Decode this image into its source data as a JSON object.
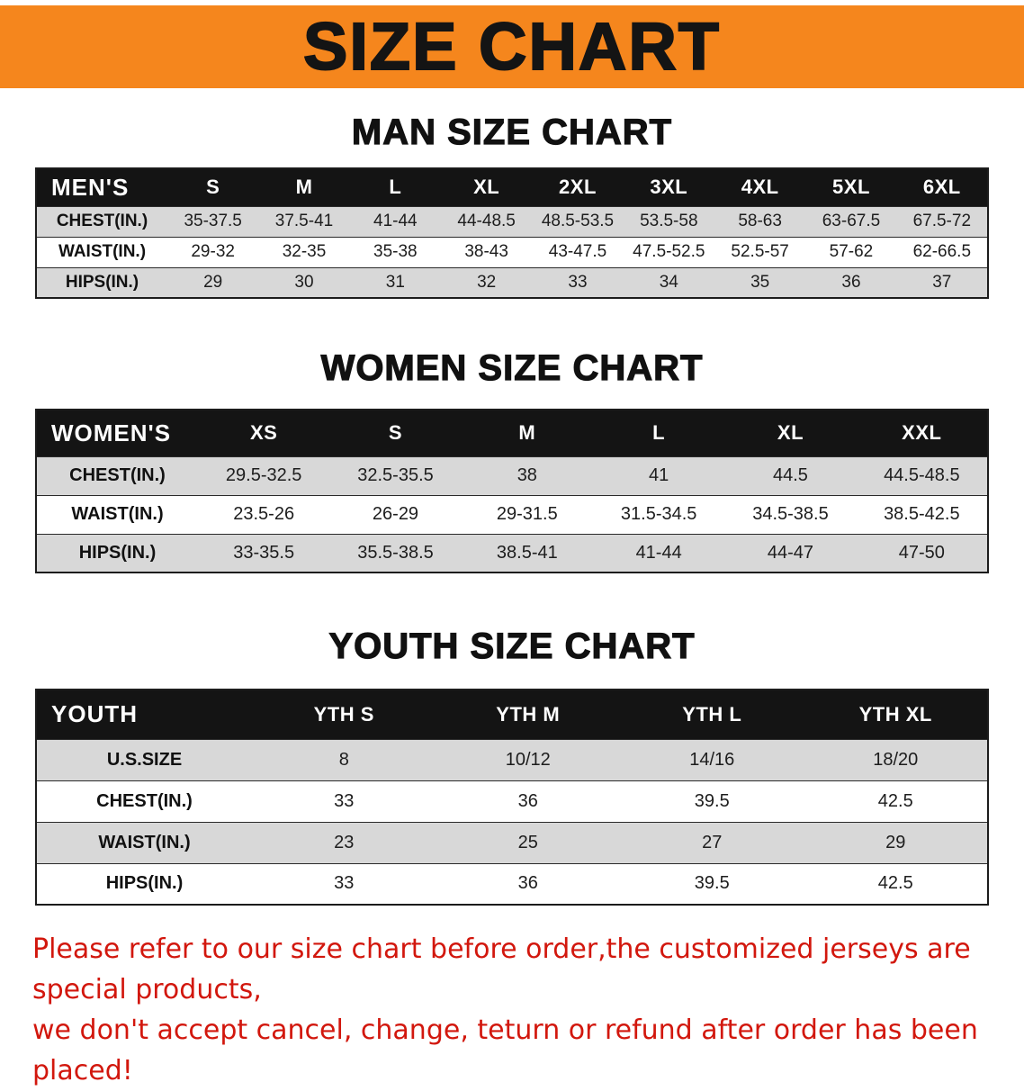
{
  "banner": {
    "title": "SIZE CHART"
  },
  "sections": [
    {
      "heading": "MAN SIZE CHART",
      "table": {
        "header": [
          "MEN'S",
          "S",
          "M",
          "L",
          "XL",
          "2XL",
          "3XL",
          "4XL",
          "5XL",
          "6XL"
        ],
        "rows": [
          [
            "CHEST(IN.)",
            "35-37.5",
            "37.5-41",
            "41-44",
            "44-48.5",
            "48.5-53.5",
            "53.5-58",
            "58-63",
            "63-67.5",
            "67.5-72"
          ],
          [
            "WAIST(IN.)",
            "29-32",
            "32-35",
            "35-38",
            "38-43",
            "43-47.5",
            "47.5-52.5",
            "52.5-57",
            "57-62",
            "62-66.5"
          ],
          [
            "HIPS(IN.)",
            "29",
            "30",
            "31",
            "32",
            "33",
            "34",
            "35",
            "36",
            "37"
          ]
        ]
      }
    },
    {
      "heading": "WOMEN SIZE CHART",
      "table": {
        "header": [
          "WOMEN'S",
          "XS",
          "S",
          "M",
          "L",
          "XL",
          "XXL"
        ],
        "rows": [
          [
            "CHEST(IN.)",
            "29.5-32.5",
            "32.5-35.5",
            "38",
            "41",
            "44.5",
            "44.5-48.5"
          ],
          [
            "WAIST(IN.)",
            "23.5-26",
            "26-29",
            "29-31.5",
            "31.5-34.5",
            "34.5-38.5",
            "38.5-42.5"
          ],
          [
            "HIPS(IN.)",
            "33-35.5",
            "35.5-38.5",
            "38.5-41",
            "41-44",
            "44-47",
            "47-50"
          ]
        ]
      }
    },
    {
      "heading": "YOUTH SIZE CHART",
      "table": {
        "header": [
          "YOUTH",
          "YTH S",
          "YTH M",
          "YTH L",
          "YTH XL"
        ],
        "rows": [
          [
            "U.S.SIZE",
            "8",
            "10/12",
            "14/16",
            "18/20"
          ],
          [
            "CHEST(IN.)",
            "33",
            "36",
            "39.5",
            "42.5"
          ],
          [
            "WAIST(IN.)",
            "23",
            "25",
            "27",
            "29"
          ],
          [
            "HIPS(IN.)",
            "33",
            "36",
            "39.5",
            "42.5"
          ]
        ]
      }
    }
  ],
  "disclaimer": {
    "line1": "Please refer to our size chart before order,the customized jerseys are special products,",
    "line2": "we don't accept cancel, change, teturn or refund after order has been placed!"
  },
  "colors": {
    "banner_bg": "#f5861d",
    "header_bg": "#141414",
    "row_alt_bg": "#d8d8d8",
    "disclaimer_red": "#d2170d"
  }
}
